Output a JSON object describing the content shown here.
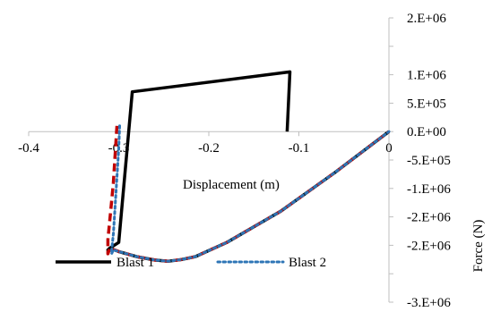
{
  "chart_data": {
    "type": "scatter",
    "title": "",
    "xlabel": "Displacement (m)",
    "ylabel": "Force (N)",
    "xlim": [
      -0.4,
      0
    ],
    "ylim": [
      -3000000,
      2000000
    ],
    "x_ticks": [
      -0.4,
      -0.3,
      -0.2,
      -0.1,
      0
    ],
    "x_tick_labels": [
      "-0.4",
      "-0.3",
      "-0.2",
      "-0.1",
      "0"
    ],
    "y_ticks": [
      2000000,
      1500000,
      1000000,
      500000,
      0,
      -500000,
      -1000000,
      -1500000,
      -2000000,
      -2500000,
      -3000000
    ],
    "y_tick_labels": [
      "2.E+06",
      "",
      "1.E+06",
      "5.E+05",
      "0.E+00",
      "-5.E+05",
      "-1.E+06",
      "-2.E+06",
      "-2.E+06",
      "",
      "-3.E+06"
    ],
    "y_axis_position": "right",
    "grid": false,
    "legend": "bottom",
    "series": [
      {
        "name": "Blast 1",
        "color": "#000000",
        "style": "solid",
        "x": [
          -0.113,
          -0.11,
          -0.285,
          -0.3,
          -0.31,
          -0.312,
          -0.31,
          -0.3,
          -0.28,
          -0.26,
          -0.245,
          -0.23,
          -0.215,
          -0.18,
          -0.12,
          -0.06,
          0
        ],
        "y": [
          0,
          1050000,
          700000,
          -1950000,
          -2050000,
          -2080000,
          -2050000,
          -2110000,
          -2200000,
          -2260000,
          -2280000,
          -2250000,
          -2200000,
          -1950000,
          -1400000,
          -720000,
          0
        ]
      },
      {
        "name": "",
        "color": "#c00000",
        "style": "dashed",
        "x": [
          -0.302,
          -0.304,
          -0.306,
          -0.309,
          -0.312,
          -0.312,
          -0.31,
          -0.3,
          -0.28,
          -0.26,
          -0.245,
          -0.23,
          -0.215,
          -0.18,
          -0.12,
          -0.06,
          0
        ],
        "y": [
          100000,
          -400000,
          -900000,
          -1400000,
          -1900000,
          -2150000,
          -2050000,
          -2110000,
          -2200000,
          -2260000,
          -2280000,
          -2250000,
          -2200000,
          -1950000,
          -1400000,
          -720000,
          0
        ]
      },
      {
        "name": "Blast 2",
        "color": "#2e75b6",
        "style": "dotted",
        "x": [
          -0.299,
          -0.3,
          -0.302,
          -0.304,
          -0.306,
          -0.308,
          -0.308,
          -0.306,
          -0.3,
          -0.28,
          -0.26,
          -0.245,
          -0.23,
          -0.215,
          -0.18,
          -0.12,
          -0.06,
          0
        ],
        "y": [
          100000,
          -300000,
          -800000,
          -1300000,
          -1800000,
          -2100000,
          -2150000,
          -2080000,
          -2110000,
          -2200000,
          -2260000,
          -2280000,
          -2250000,
          -2200000,
          -1950000,
          -1400000,
          -720000,
          0
        ]
      }
    ]
  }
}
